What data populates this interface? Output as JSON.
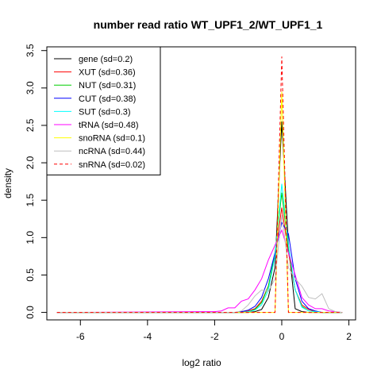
{
  "chart_data": {
    "type": "line",
    "title": "number read ratio WT_UPF1_2/WT_UPF1_1",
    "xlabel": "log2 ratio",
    "ylabel": "density",
    "xlim": [
      -7.0,
      2.2
    ],
    "ylim": [
      -0.1,
      3.55
    ],
    "xticks": [
      "-6",
      "-4",
      "-2",
      "0",
      "2"
    ],
    "yticks": [
      "0.0",
      "0.5",
      "1.0",
      "1.5",
      "2.0",
      "2.5",
      "3.0",
      "3.5"
    ],
    "legend_position": "top-left",
    "x": [
      -6.7,
      -2.0,
      -1.8,
      -1.6,
      -1.4,
      -1.2,
      -1.0,
      -0.8,
      -0.6,
      -0.4,
      -0.2,
      0.0,
      0.2,
      0.4,
      0.6,
      0.8,
      1.0,
      1.2,
      1.4,
      1.6,
      1.8
    ],
    "series": [
      {
        "name": "gene (sd=0.2)",
        "color": "#000000",
        "dash": false,
        "values": [
          0,
          0,
          0,
          0,
          0,
          0,
          0,
          0.01,
          0.04,
          0.2,
          0.6,
          2.55,
          0.9,
          0.05,
          0.01,
          0,
          0,
          0,
          0,
          0,
          0
        ]
      },
      {
        "name": "XUT (sd=0.36)",
        "color": "#ff0000",
        "dash": false,
        "values": [
          0,
          0,
          0,
          0,
          0,
          0.01,
          0.02,
          0.05,
          0.15,
          0.35,
          0.75,
          1.4,
          0.8,
          0.3,
          0.1,
          0.04,
          0.01,
          0,
          0,
          0,
          0
        ]
      },
      {
        "name": "NUT (sd=0.31)",
        "color": "#00cd00",
        "dash": false,
        "values": [
          0,
          0,
          0,
          0,
          0,
          0,
          0.01,
          0.04,
          0.13,
          0.35,
          0.8,
          1.6,
          0.85,
          0.3,
          0.08,
          0.02,
          0.01,
          0,
          0,
          0,
          0
        ]
      },
      {
        "name": "CUT (sd=0.38)",
        "color": "#0000ff",
        "dash": false,
        "values": [
          0,
          0,
          0,
          0,
          0,
          0.01,
          0.03,
          0.08,
          0.2,
          0.45,
          0.8,
          1.2,
          1.05,
          0.45,
          0.15,
          0.05,
          0.02,
          0,
          0,
          0,
          0
        ]
      },
      {
        "name": "SUT (sd=0.3)",
        "color": "#00ffff",
        "dash": false,
        "values": [
          0,
          0,
          0,
          0,
          0,
          0,
          0.01,
          0.03,
          0.1,
          0.3,
          0.75,
          1.72,
          0.9,
          0.3,
          0.07,
          0.02,
          0.01,
          0,
          0,
          0,
          0
        ]
      },
      {
        "name": "tRNA (sd=0.48)",
        "color": "#ff00ff",
        "dash": false,
        "values": [
          0,
          0.01,
          0.02,
          0.06,
          0.06,
          0.15,
          0.18,
          0.3,
          0.45,
          0.7,
          0.9,
          1.1,
          0.8,
          0.5,
          0.2,
          0.1,
          0.05,
          0.05,
          0.02,
          0.01,
          0
        ]
      },
      {
        "name": "snoRNA (sd=0.1)",
        "color": "#ffff00",
        "dash": false,
        "values": [
          0,
          0,
          0,
          0,
          0,
          0,
          0,
          0,
          0,
          0,
          0,
          2.95,
          0,
          0,
          0,
          0,
          0,
          0,
          0,
          0,
          0
        ]
      },
      {
        "name": "ncRNA (sd=0.44)",
        "color": "#bebebe",
        "dash": false,
        "values": [
          0,
          0,
          0,
          0,
          0,
          0.02,
          0.1,
          0.22,
          0.3,
          0.28,
          0.45,
          1.3,
          0.6,
          0.45,
          0.35,
          0.2,
          0.18,
          0.25,
          0.05,
          0.01,
          0
        ]
      },
      {
        "name": "snRNA (sd=0.02)",
        "color": "#ff0000",
        "dash": true,
        "values": [
          0,
          0,
          0,
          0,
          0,
          0,
          0,
          0,
          0,
          0,
          0,
          3.42,
          0,
          0,
          0,
          0,
          0,
          0,
          0,
          0,
          0
        ]
      }
    ]
  }
}
